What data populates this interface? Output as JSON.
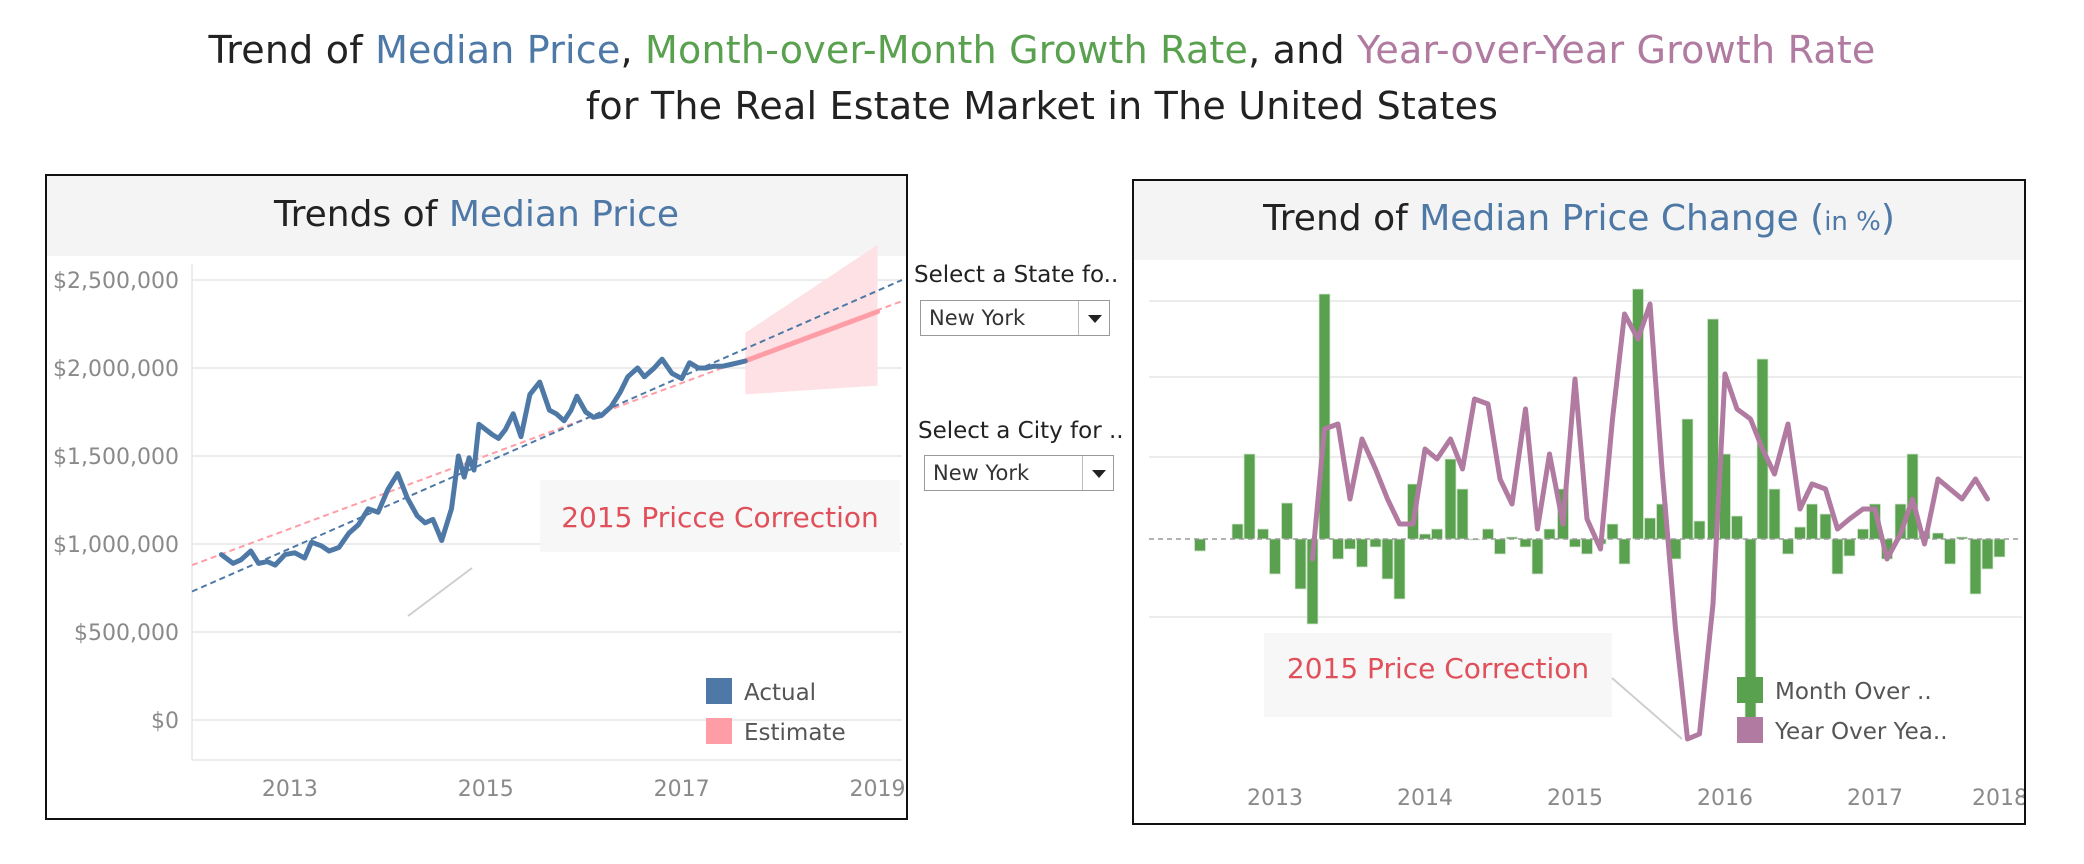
{
  "title": {
    "line1": [
      {
        "text": "Trend of ",
        "color": "default"
      },
      {
        "text": "Median Price",
        "color": "blue"
      },
      {
        "text": ", ",
        "color": "default"
      },
      {
        "text": "Month-over-Month Growth Rate",
        "color": "green"
      },
      {
        "text": ", and ",
        "color": "default"
      },
      {
        "text": "Year-over-Year Growth Rate",
        "color": "purple"
      }
    ],
    "line2": "for The Real Estate Market in The United States"
  },
  "colors": {
    "blue": "#4e79a7",
    "green": "#59a14f",
    "purple": "#b07aa1",
    "estimate": "#ff9da7",
    "band": "#fde1e4",
    "annotation": "#e0505a"
  },
  "filters": {
    "state": {
      "label": "Select a State fo..",
      "value": "New York"
    },
    "city": {
      "label": "Select a City for ..",
      "value": "New York"
    }
  },
  "left_panel": {
    "header_plain": "Trends of ",
    "header_colored": "Median Price"
  },
  "right_panel": {
    "header_plain": "Trend of ",
    "header_colored": "Median Price Change (",
    "header_unit": "in %",
    "header_close": ")"
  },
  "chart_data": [
    {
      "type": "line",
      "title": "Trends of Median Price",
      "x_ticks": [
        "2013",
        "2015",
        "2017",
        "2019"
      ],
      "y_ticks": [
        "$0",
        "$500,000",
        "$1,000,000",
        "$1,500,000",
        "$2,000,000",
        "$2,500,000"
      ],
      "ylim": [
        0,
        3000000
      ],
      "xlim": [
        2012.0,
        2019.25
      ],
      "grid": true,
      "legend_position": "bottom-right",
      "legend": [
        "Actual",
        "Estimate"
      ],
      "annotation": "2015 Pricce Correction",
      "series": [
        {
          "name": "Actual",
          "x": [
            2012.3,
            2012.42,
            2012.5,
            2012.6,
            2012.68,
            2012.77,
            2012.85,
            2012.95,
            2013.05,
            2013.15,
            2013.22,
            2013.32,
            2013.4,
            2013.5,
            2013.6,
            2013.7,
            2013.8,
            2013.9,
            2014.0,
            2014.1,
            2014.2,
            2014.3,
            2014.38,
            2014.46,
            2014.55,
            2014.65,
            2014.72,
            2014.78,
            2014.83,
            2014.88,
            2014.93,
            2015.0,
            2015.07,
            2015.13,
            2015.2,
            2015.28,
            2015.36,
            2015.45,
            2015.55,
            2015.65,
            2015.72,
            2015.8,
            2015.87,
            2015.93,
            2016.02,
            2016.1,
            2016.18,
            2016.28,
            2016.37,
            2016.45,
            2016.55,
            2016.62,
            2016.72,
            2016.8,
            2016.9,
            2017.0,
            2017.08,
            2017.17,
            2017.25,
            2017.33,
            2017.42,
            2017.5,
            2017.58,
            2017.65
          ],
          "values": [
            940000,
            890000,
            910000,
            960000,
            890000,
            900000,
            880000,
            940000,
            950000,
            920000,
            1010000,
            990000,
            960000,
            980000,
            1060000,
            1110000,
            1200000,
            1180000,
            1310000,
            1400000,
            1260000,
            1160000,
            1120000,
            1140000,
            1020000,
            1200000,
            1500000,
            1380000,
            1490000,
            1420000,
            1680000,
            1650000,
            1620000,
            1600000,
            1650000,
            1740000,
            1610000,
            1850000,
            1920000,
            1760000,
            1740000,
            1700000,
            1760000,
            1840000,
            1750000,
            1720000,
            1730000,
            1780000,
            1860000,
            1950000,
            2000000,
            1950000,
            2000000,
            2050000,
            1970000,
            1940000,
            2030000,
            2000000,
            2000000,
            2010000,
            2010000,
            2020000,
            2030000,
            2040000
          ]
        },
        {
          "name": "Estimate",
          "x": [
            2017.65,
            2019.0
          ],
          "values": [
            2040000,
            2320000
          ],
          "band_upper": [
            2200000,
            2700000
          ],
          "band_lower": [
            1850000,
            1900000
          ]
        },
        {
          "name": "Trend (Actual)",
          "x": [
            2012.0,
            2019.25
          ],
          "values": [
            730000,
            2500000
          ]
        },
        {
          "name": "Trend (Estimate)",
          "x": [
            2012.0,
            2019.25
          ],
          "values": [
            880000,
            2380000
          ]
        }
      ]
    },
    {
      "type": "bar",
      "title": "Trend of Median Price Change (in %)",
      "x_ticks": [
        "2013",
        "2014",
        "2015",
        "2016",
        "2017",
        "2018"
      ],
      "xlim": [
        2012.0,
        2018.0
      ],
      "ylim": [
        -0.2,
        0.25
      ],
      "grid": true,
      "legend_position": "bottom-right",
      "legend": [
        "Month Over ..",
        "Year Over Yea.."
      ],
      "annotation": "2015 Price Correction",
      "series": [
        {
          "name": "Month Over ..",
          "type": "bar",
          "x": [
            2012.5,
            2012.75,
            2012.83,
            2012.92,
            2013.0,
            2013.08,
            2013.17,
            2013.25,
            2013.33,
            2013.42,
            2013.5,
            2013.58,
            2013.67,
            2013.75,
            2013.83,
            2013.92,
            2014.0,
            2014.08,
            2014.17,
            2014.25,
            2014.33,
            2014.42,
            2014.5,
            2014.58,
            2014.67,
            2014.75,
            2014.83,
            2014.92,
            2015.0,
            2015.08,
            2015.17,
            2015.25,
            2015.33,
            2015.42,
            2015.5,
            2015.58,
            2015.67,
            2015.75,
            2015.83,
            2015.92,
            2016.0,
            2016.08,
            2016.17,
            2016.25,
            2016.33,
            2016.42,
            2016.5,
            2016.58,
            2016.67,
            2016.75,
            2016.83,
            2016.92,
            2017.0,
            2017.08,
            2017.17,
            2017.25,
            2017.33,
            2017.42,
            2017.5,
            2017.58,
            2017.67,
            2017.75,
            2017.83
          ],
          "values": [
            -0.012,
            0.015,
            0.085,
            0.01,
            -0.035,
            0.036,
            -0.05,
            -0.085,
            0.245,
            -0.02,
            -0.01,
            -0.028,
            -0.008,
            -0.04,
            -0.06,
            0.055,
            0.005,
            0.01,
            0.08,
            0.05,
            0.0,
            0.01,
            -0.015,
            0.002,
            -0.008,
            -0.035,
            0.01,
            0.05,
            -0.008,
            -0.015,
            -0.005,
            0.015,
            -0.025,
            0.25,
            0.021,
            0.035,
            -0.02,
            0.12,
            0.018,
            0.22,
            0.085,
            0.023,
            -0.201,
            0.18,
            0.05,
            -0.015,
            0.012,
            0.035,
            0.025,
            -0.035,
            -0.017,
            0.01,
            0.035,
            -0.02,
            0.035,
            0.085,
            0.008,
            0.006,
            -0.025,
            0.002,
            -0.055,
            -0.03,
            -0.018
          ]
        },
        {
          "name": "Year Over Yea..",
          "type": "line",
          "x": [
            2013.25,
            2013.33,
            2013.42,
            2013.5,
            2013.58,
            2013.67,
            2013.75,
            2013.83,
            2013.92,
            2014.0,
            2014.08,
            2014.17,
            2014.25,
            2014.33,
            2014.42,
            2014.5,
            2014.58,
            2014.67,
            2014.75,
            2014.83,
            2014.92,
            2015.0,
            2015.08,
            2015.17,
            2015.25,
            2015.33,
            2015.42,
            2015.5,
            2015.58,
            2015.67,
            2015.75,
            2015.83,
            2015.92,
            2016.0,
            2016.08,
            2016.17,
            2016.25,
            2016.33,
            2016.42,
            2016.5,
            2016.58,
            2016.67,
            2016.75,
            2016.83,
            2016.92,
            2017.0,
            2017.08,
            2017.17,
            2017.25,
            2017.33,
            2017.42,
            2017.5,
            2017.58,
            2017.67,
            2017.75
          ],
          "values": [
            -0.02,
            0.11,
            0.115,
            0.04,
            0.1,
            0.07,
            0.04,
            0.015,
            0.015,
            0.09,
            0.08,
            0.1,
            0.07,
            0.14,
            0.135,
            0.06,
            0.035,
            0.13,
            0.01,
            0.085,
            0.015,
            0.16,
            0.02,
            -0.01,
            0.12,
            0.225,
            0.2,
            0.235,
            0.07,
            -0.09,
            -0.2,
            -0.195,
            -0.065,
            0.165,
            0.13,
            0.12,
            0.09,
            0.065,
            0.115,
            0.03,
            0.055,
            0.05,
            0.01,
            0.02,
            0.03,
            0.03,
            -0.02,
            0.005,
            0.04,
            -0.005,
            0.06,
            0.05,
            0.04,
            0.06,
            0.04
          ]
        }
      ]
    }
  ]
}
